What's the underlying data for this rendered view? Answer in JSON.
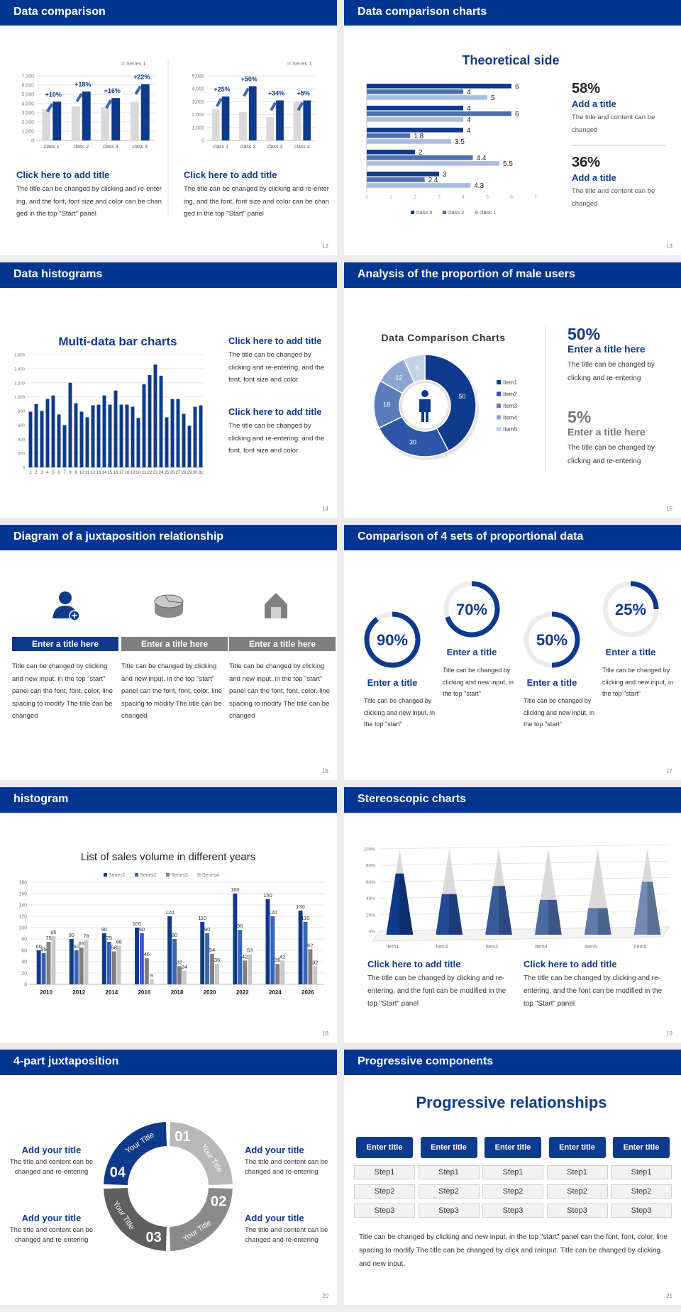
{
  "slides": [
    {
      "header": "Data comparison",
      "page": 12,
      "charts": [
        {
          "type": "bar",
          "categories": [
            "class 1",
            "class 2",
            "class 3",
            "class 4"
          ],
          "series": [
            {
              "name": "Series 1",
              "color": "#d9d9d9",
              "values": [
                3400,
                3700,
                3600,
                4200
              ]
            },
            {
              "color": "#0e3a8c",
              "values": [
                4200,
                5300,
                4600,
                6100
              ]
            }
          ],
          "annotations": [
            "+10%",
            "+18%",
            "+16%",
            "+22%"
          ],
          "ylim": [
            0,
            7000
          ],
          "yticks": [
            0,
            {
              "value": 1000,
              "label": "1,000"
            },
            {
              "value": 2000,
              "label": "2,000"
            },
            {
              "value": 3000,
              "label": "3,000"
            },
            {
              "value": 4000,
              "label": "4,000"
            },
            {
              "value": 5000,
              "label": "5,000"
            },
            {
              "value": 6000,
              "label": "6,000"
            },
            {
              "value": 7000,
              "label": "7,000"
            }
          ],
          "grid": true
        },
        {
          "type": "bar",
          "categories": [
            "class 1",
            "class 2",
            "class 3",
            "class 4"
          ],
          "series": [
            {
              "name": "Series 1",
              "color": "#d9d9d9",
              "values": [
                2400,
                2200,
                1800,
                3000
              ]
            },
            {
              "color": "#0e3a8c",
              "values": [
                3400,
                4200,
                3100,
                3100
              ]
            }
          ],
          "annotations": [
            "+25%",
            "+50%",
            "+34%",
            "+5%"
          ],
          "ylim": [
            0,
            5000
          ],
          "yticks": [
            0,
            {
              "value": 1000,
              "label": "1,000"
            },
            {
              "value": 2000,
              "label": "2,000"
            },
            {
              "value": 3000,
              "label": "3,000"
            },
            {
              "value": 4000,
              "label": "4,000"
            },
            {
              "value": 5000,
              "label": "5,000"
            }
          ],
          "grid": true
        }
      ],
      "blocks": [
        {
          "title": "Click here to add title",
          "text": "The title can be changed by clicking and re-entering, and the font, font size and color can be changed in the top \"Start\" panel"
        },
        {
          "title": "Click here to add title",
          "text": "The title can be changed by clicking and re-entering, and the font, font size and color can be changed in the top \"Start\" panel"
        }
      ]
    },
    {
      "header": "Data comparison charts",
      "page": 13,
      "chart": {
        "type": "hbar",
        "title": "Theoretical side",
        "categories": [
          null,
          null,
          null,
          null,
          null
        ],
        "series": [
          {
            "name": "class 3",
            "color": "#0e3a8c",
            "values": [
              6,
              4,
              4,
              2,
              3
            ]
          },
          {
            "name": "class 2",
            "color": "#4a6fb5",
            "values": [
              4,
              6,
              1.8,
              4.4,
              2.4
            ]
          },
          {
            "name": "class 1",
            "color": "#a9bde0",
            "values": [
              5,
              4,
              3.5,
              5.5,
              4.3
            ]
          }
        ],
        "xlim": [
          0,
          7
        ],
        "xticks": [
          0,
          1,
          2,
          3,
          4,
          5,
          6,
          7
        ]
      },
      "stats": [
        {
          "value": "58%",
          "title": "Add a title",
          "text": "The title and content can be changed"
        },
        {
          "value": "36%",
          "title": "Add a title",
          "text": "The title and content can be changed"
        }
      ]
    },
    {
      "header": "Data histograms",
      "page": 14,
      "chart": {
        "type": "bar",
        "title": "Multi-data bar charts",
        "categories": [
          "1",
          "2",
          "3",
          "4",
          "5",
          "6",
          "7",
          "8",
          "9",
          "10",
          "11",
          "12",
          "13",
          "14",
          "15",
          "16",
          "17",
          "18",
          "19",
          "20",
          "21",
          "22",
          "23",
          "24",
          "25",
          "26",
          "27",
          "28",
          "29",
          "30",
          "31"
        ],
        "values": [
          790,
          900,
          800,
          970,
          1020,
          750,
          600,
          1200,
          910,
          790,
          710,
          880,
          890,
          1020,
          890,
          1090,
          890,
          890,
          860,
          700,
          1180,
          1310,
          1460,
          1300,
          710,
          970,
          970,
          760,
          590,
          860,
          880
        ],
        "color": "#0e3a8c",
        "ylim": [
          0,
          1600
        ],
        "yticks": [
          0,
          200,
          400,
          600,
          800,
          {
            "value": 1000,
            "label": "1,000"
          },
          {
            "value": 1200,
            "label": "1,200"
          },
          {
            "value": 1400,
            "label": "1,400"
          },
          {
            "value": 1600,
            "label": "1,600"
          }
        ],
        "grid": true
      },
      "blocks": [
        {
          "title": "Click here to add title",
          "text": "The title can be changed by clicking and re-entering, and the font, font size and color"
        },
        {
          "title": "Click here to add title",
          "text": "The title can be changed by clicking and re-entering, and the font, font size and color"
        }
      ]
    },
    {
      "header": "Analysis of the proportion of male users",
      "page": 15,
      "chart": {
        "type": "donut",
        "title": "Data Comparison Charts",
        "categories": [
          "Item1",
          "Item2",
          "Item3",
          "Item4",
          "Item5"
        ],
        "values": [
          50,
          30,
          18,
          12,
          8
        ],
        "colors": [
          "#0e3a8c",
          "#2d56a8",
          "#5b7cbc",
          "#8ea5d0",
          "#c5d1e8"
        ]
      },
      "stats": [
        {
          "value": "50%",
          "title": "Enter a title here",
          "text": "The title can be changed by clicking and re-entering"
        },
        {
          "value": "5%",
          "title": "Enter a title here",
          "text": "The title can be changed by clicking and re-entering"
        }
      ]
    },
    {
      "header": "Diagram of a juxtaposition relationship",
      "page": 16,
      "columns": [
        {
          "title": "Enter a title here",
          "text": "Title can be changed by clicking and new input, in the top \"start\" panel can the font, font, color, line spacing to modify The title can be changed"
        },
        {
          "title": "Enter a title here",
          "text": "Title can be changed by clicking and new input, in the top \"start\" panel can the font, font, color, line spacing to modify The title can be changed"
        },
        {
          "title": "Enter a title here",
          "text": "Title can be changed by clicking and new input, in the top \"start\" panel can the font, font, color, line spacing to modify The title can be changed"
        }
      ]
    },
    {
      "header": "Comparison of 4 sets of proportional data",
      "page": 17,
      "chart": {
        "type": "ring",
        "values": [
          90,
          70,
          50,
          25
        ],
        "value_labels": [
          "90%",
          "70%",
          "50%",
          "25%"
        ],
        "ylim": [
          0,
          100
        ],
        "color": "#0e3a8c"
      },
      "blocks": [
        {
          "title": "Enter a title",
          "text": "Title can be changed by clicking and new input, in the top \"start\""
        },
        {
          "title": "Enter a title",
          "text": "Title can be changed by clicking and new input, in the top \"start\""
        },
        {
          "title": "Enter a title",
          "text": "Title can be changed by clicking and new input, in the top \"start\""
        },
        {
          "title": "Enter a title",
          "text": "Title can be changed by clicking and new input, in the top \"start\""
        }
      ]
    },
    {
      "header": "histogram",
      "page": 18,
      "chart": {
        "type": "bar",
        "title": "List of sales volume in different years",
        "categories": [
          "2010",
          "2012",
          "2014",
          "2016",
          "2018",
          "2020",
          "2022",
          "2024",
          "2026"
        ],
        "series": [
          {
            "name": "Series1",
            "color": "#0e3a8c",
            "values": [
              60,
              80,
              90,
              100,
              120,
              110,
              160,
              150,
              130
            ]
          },
          {
            "name": "Series2",
            "color": "#3a64b4",
            "values": [
              55,
              60,
              75,
              90,
              80,
              90,
              96,
              120,
              110
            ]
          },
          {
            "name": "Series3",
            "color": "#7f7f7f",
            "values": [
              75,
              65,
              58,
              46,
              32,
              54,
              42,
              36,
              62
            ]
          },
          {
            "name": "Series4",
            "color": "#c8c8c8",
            "values": [
              85,
              78,
              68,
              9,
              24,
              36,
              53,
              42,
              32
            ]
          }
        ],
        "ylim": [
          0,
          180
        ],
        "yticks": [
          0,
          20,
          40,
          60,
          80,
          100,
          120,
          140,
          160,
          180
        ],
        "grid": true
      }
    },
    {
      "header": "Stereoscopic charts",
      "page": 19,
      "chart": {
        "type": "cone",
        "categories": [
          "Item1",
          "Item2",
          "Item3",
          "Item4",
          "Item5",
          "Item6"
        ],
        "series": [
          {
            "color": "#0e3a8c",
            "values": [
              70,
              45,
              55,
              38,
              28,
              60
            ]
          },
          {
            "color": "#d4d4d4",
            "values": [
              100,
              100,
              100,
              100,
              100,
              100
            ]
          }
        ],
        "ylim": [
          0,
          100
        ],
        "yticks": [
          {
            "value": 0,
            "label": "0%"
          },
          {
            "value": 20,
            "label": "20%"
          },
          {
            "value": 40,
            "label": "40%"
          },
          {
            "value": 60,
            "label": "60%"
          },
          {
            "value": 80,
            "label": "80%"
          },
          {
            "value": 100,
            "label": "100%"
          }
        ]
      },
      "blocks": [
        {
          "title": "Click here to add title",
          "text": "The title can be changed by clicking and re-entering, and the font can be modified in the top \"Start\" panel"
        },
        {
          "title": "Click here to add title",
          "text": "The title can be changed by clicking and re-entering, and the font can be modified in the top \"Start\" panel"
        }
      ]
    },
    {
      "header": "4-part juxtaposition",
      "page": 20,
      "segments": [
        {
          "number": "01",
          "label": "Your Title"
        },
        {
          "number": "02",
          "label": "Your Title"
        },
        {
          "number": "03",
          "label": "Your Title"
        },
        {
          "number": "04",
          "label": "Your Title"
        }
      ],
      "blocks": [
        {
          "title": "Add your title",
          "text": "The title and content can be changed and re-entering"
        },
        {
          "title": "Add your title",
          "text": "The title and content can be changed and re-entering"
        },
        {
          "title": "Add your title",
          "text": "The title and content can be changed and re-entering"
        },
        {
          "title": "Add your title",
          "text": "The title and content can be changed and re-entering"
        }
      ]
    },
    {
      "header": "Progressive components",
      "page": 21,
      "title": "Progressive relationships",
      "columns": [
        {
          "title": "Enter title",
          "steps": [
            "Step1",
            "Step2",
            "Step3"
          ]
        },
        {
          "title": "Enter title",
          "steps": [
            "Step1",
            "Step2",
            "Step3"
          ]
        },
        {
          "title": "Enter title",
          "steps": [
            "Step1",
            "Step2",
            "Step3"
          ]
        },
        {
          "title": "Enter title",
          "steps": [
            "Step1",
            "Step2",
            "Step3"
          ]
        },
        {
          "title": "Enter title",
          "steps": [
            "Step1",
            "Step2",
            "Step3"
          ]
        }
      ],
      "text": "Title can be changed by clicking and new input, in the top \"start\" panel can the font, font, color, line spacing to modify The title can be changed by click and reinput. Title can be changed by clicking and new input."
    }
  ]
}
